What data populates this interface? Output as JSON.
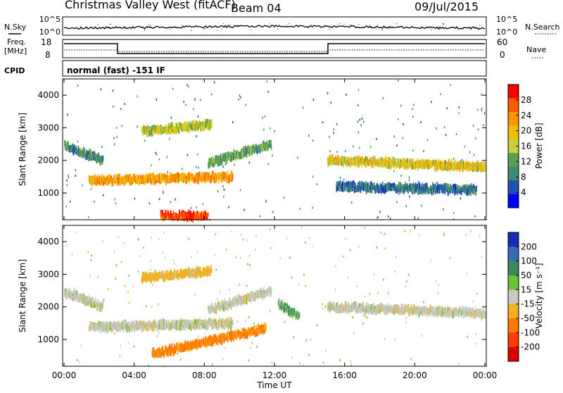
{
  "header": {
    "station": "Christmas Valley West (fitACF)",
    "beam": "Beam 04",
    "date": "09/Jul/2015"
  },
  "noise_panel": {
    "left_label": "N.Sky",
    "right_label": "N.Search",
    "left_ticks": [
      "10^5",
      "10^0"
    ],
    "right_ticks": [
      "10^5",
      "10^0"
    ]
  },
  "freq_panel": {
    "left_label_1": "Freq.",
    "left_label_2": "[MHz]",
    "right_label": "Nave",
    "left_ticks": [
      "18",
      "8"
    ],
    "right_ticks": [
      "60",
      "0"
    ]
  },
  "cpid": {
    "label": "CPID",
    "text": "normal (fast) -151 IF"
  },
  "power_colorbar": {
    "title": "Power [dB]",
    "ticks": [
      "28",
      "24",
      "20",
      "16",
      "12",
      "8",
      "4"
    ],
    "colors": [
      "#ff0000",
      "#ff5a00",
      "#ff9600",
      "#f0c000",
      "#c8d040",
      "#5aa050",
      "#3a8a78",
      "#2050b0",
      "#0000ff"
    ]
  },
  "velocity_colorbar": {
    "title": "Velocity [m s⁻¹]",
    "ticks": [
      "200",
      "100",
      "50",
      "15",
      "-15",
      "-50",
      "-100",
      "-200"
    ],
    "colors": [
      "#1a2ab8",
      "#3a6ab0",
      "#3a8a60",
      "#6cc03a",
      "#c8c8c0",
      "#f0b020",
      "#ff7800",
      "#ff3c00",
      "#e00000"
    ]
  },
  "chart_data": [
    {
      "type": "heatmap",
      "title": "Power",
      "ylabel": "Slant Range [km]",
      "xlabel": "Time UT",
      "yticks": [
        1000,
        2000,
        3000,
        4000
      ],
      "ylim": [
        180,
        4500
      ],
      "xticks": [
        "00:00",
        "04:00",
        "08:00",
        "12:00",
        "16:00",
        "20:00",
        "00:00"
      ],
      "xlim_hours": [
        0,
        24
      ],
      "colorbar_label": "Power [dB]",
      "features": [
        {
          "name": "band-a",
          "t0": 0,
          "t1": 2.2,
          "r0": 2450,
          "r1": 2000,
          "value": 10
        },
        {
          "name": "band-b",
          "t0": 1.4,
          "t1": 9.6,
          "r0": 1380,
          "r1": 1500,
          "value": 22
        },
        {
          "name": "band-c",
          "t0": 8.2,
          "t1": 11.8,
          "r0": 1900,
          "r1": 2500,
          "value": 12
        },
        {
          "name": "band-d",
          "t0": 4.4,
          "t1": 8.4,
          "r0": 2900,
          "r1": 3100,
          "value": 16
        },
        {
          "name": "band-e",
          "t0": 15.0,
          "t1": 24,
          "r0": 2000,
          "r1": 1800,
          "value": 18
        },
        {
          "name": "band-f",
          "t0": 15.5,
          "t1": 23.5,
          "r0": 1200,
          "r1": 1100,
          "value": 8
        },
        {
          "name": "ground",
          "t0": 5.5,
          "t1": 8.2,
          "r0": 300,
          "r1": 300,
          "value": 28
        }
      ]
    },
    {
      "type": "heatmap",
      "title": "Velocity",
      "ylabel": "Slant Range [km]",
      "xlabel": "Time UT",
      "yticks": [
        1000,
        2000,
        3000,
        4000
      ],
      "ylim": [
        180,
        4500
      ],
      "xticks": [
        "00:00",
        "04:00",
        "08:00",
        "12:00",
        "16:00",
        "20:00",
        "00:00"
      ],
      "xlim_hours": [
        0,
        24
      ],
      "colorbar_label": "Velocity [m s⁻¹]",
      "features": [
        {
          "name": "band-a",
          "t0": 0,
          "t1": 2.2,
          "r0": 2450,
          "r1": 2000,
          "value": 0
        },
        {
          "name": "band-b",
          "t0": 1.4,
          "t1": 9.6,
          "r0": 1380,
          "r1": 1500,
          "value": 0
        },
        {
          "name": "band-c",
          "t0": 8.2,
          "t1": 11.8,
          "r0": 1900,
          "r1": 2500,
          "value": 0
        },
        {
          "name": "band-d",
          "t0": 4.4,
          "t1": 8.4,
          "r0": 2900,
          "r1": 3100,
          "value": -30
        },
        {
          "name": "band-e",
          "t0": 15.0,
          "t1": 24,
          "r0": 2000,
          "r1": 1800,
          "value": 0
        },
        {
          "name": "band-orange",
          "t0": 5.0,
          "t1": 11.5,
          "r0": 550,
          "r1": 1350,
          "value": -60
        },
        {
          "name": "band-green",
          "t0": 12.2,
          "t1": 13.4,
          "r0": 2100,
          "r1": 1700,
          "value": 30
        }
      ]
    }
  ]
}
